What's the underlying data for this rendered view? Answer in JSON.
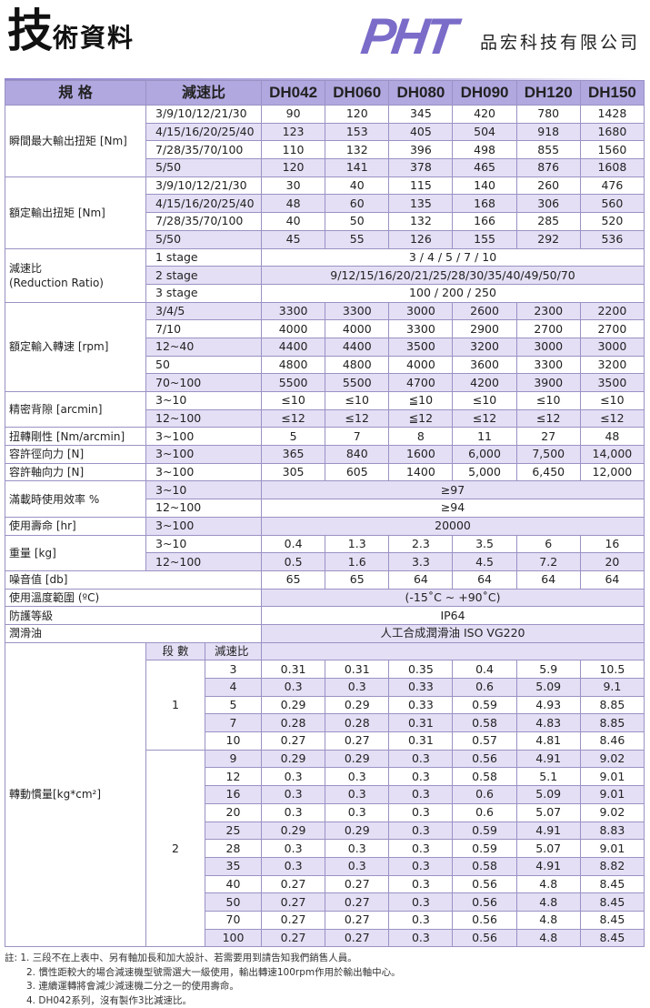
{
  "header": {
    "title_big": "技",
    "title_rest": "術資料",
    "logo": "PHT",
    "company": "品宏科技有限公司"
  },
  "columns": {
    "spec": "規 格",
    "ratio": "減速比",
    "models": [
      "DH042",
      "DH060",
      "DH080",
      "DH090",
      "DH120",
      "DH150"
    ]
  },
  "groups": [
    {
      "label": "瞬間最大輸出扭矩 [Nm]",
      "rows": [
        {
          "ratio": "3/9/10/12/21/30",
          "values": [
            "90",
            "120",
            "345",
            "420",
            "780",
            "1428"
          ]
        },
        {
          "ratio": "4/15/16/20/25/40",
          "values": [
            "123",
            "153",
            "405",
            "504",
            "918",
            "1680"
          ]
        },
        {
          "ratio": "7/28/35/70/100",
          "values": [
            "110",
            "132",
            "396",
            "498",
            "855",
            "1560"
          ]
        },
        {
          "ratio": "5/50",
          "values": [
            "120",
            "141",
            "378",
            "465",
            "876",
            "1608"
          ]
        }
      ]
    },
    {
      "label": "額定輸出扭矩 [Nm]",
      "rows": [
        {
          "ratio": "3/9/10/12/21/30",
          "values": [
            "30",
            "40",
            "115",
            "140",
            "260",
            "476"
          ]
        },
        {
          "ratio": "4/15/16/20/25/40",
          "values": [
            "48",
            "60",
            "135",
            "168",
            "306",
            "560"
          ]
        },
        {
          "ratio": "7/28/35/70/100",
          "values": [
            "40",
            "50",
            "132",
            "166",
            "285",
            "520"
          ]
        },
        {
          "ratio": "5/50",
          "values": [
            "45",
            "55",
            "126",
            "155",
            "292",
            "536"
          ]
        }
      ]
    },
    {
      "label": "減速比\n(Reduction Ratio)",
      "rows": [
        {
          "ratio": "1 stage",
          "span": "3 / 4 / 5 / 7 / 10"
        },
        {
          "ratio": "2 stage",
          "span": "9/12/15/16/20/21/25/28/30/35/40/49/50/70"
        },
        {
          "ratio": "3 stage",
          "span": "100 / 200 / 250"
        }
      ]
    },
    {
      "label": "額定輸入轉速 [rpm]",
      "rows": [
        {
          "ratio": "3/4/5",
          "values": [
            "3300",
            "3300",
            "3000",
            "2600",
            "2300",
            "2200"
          ]
        },
        {
          "ratio": "7/10",
          "values": [
            "4000",
            "4000",
            "3300",
            "2900",
            "2700",
            "2700"
          ]
        },
        {
          "ratio": "12~40",
          "values": [
            "4400",
            "4400",
            "3500",
            "3200",
            "3000",
            "3000"
          ]
        },
        {
          "ratio": "50",
          "values": [
            "4800",
            "4800",
            "4000",
            "3600",
            "3300",
            "3200"
          ]
        },
        {
          "ratio": "70~100",
          "values": [
            "5500",
            "5500",
            "4700",
            "4200",
            "3900",
            "3500"
          ]
        }
      ]
    },
    {
      "label": "精密背隙 [arcmin]",
      "rows": [
        {
          "ratio": "3~10",
          "values": [
            "≤10",
            "≤10",
            "≦10",
            "≤10",
            "≤10",
            "≤10"
          ]
        },
        {
          "ratio": "12~100",
          "values": [
            "≤12",
            "≤12",
            "≦12",
            "≤12",
            "≤12",
            "≤12"
          ]
        }
      ]
    },
    {
      "label": "扭轉剛性 [Nm/arcmin]",
      "rows": [
        {
          "ratio": "3~100",
          "values": [
            "5",
            "7",
            "8",
            "11",
            "27",
            "48"
          ]
        }
      ]
    },
    {
      "label": "容許徑向力 [N]",
      "rows": [
        {
          "ratio": "3~100",
          "values": [
            "365",
            "840",
            "1600",
            "6,000",
            "7,500",
            "14,000"
          ]
        }
      ]
    },
    {
      "label": "容許軸向力 [N]",
      "rows": [
        {
          "ratio": "3~100",
          "values": [
            "305",
            "605",
            "1400",
            "5,000",
            "6,450",
            "12,000"
          ]
        }
      ]
    },
    {
      "label": "滿載時使用效率 %",
      "rows": [
        {
          "ratio": "3~10",
          "span": "≥97"
        },
        {
          "ratio": "12~100",
          "span": "≥94"
        }
      ]
    },
    {
      "label": "使用壽命 [hr]",
      "rows": [
        {
          "ratio": "3~100",
          "span": "20000"
        }
      ]
    },
    {
      "label": "重量 [kg]",
      "rows": [
        {
          "ratio": "3~10",
          "values": [
            "0.4",
            "1.3",
            "2.3",
            "3.5",
            "6",
            "16"
          ]
        },
        {
          "ratio": "12~100",
          "values": [
            "0.5",
            "1.6",
            "3.3",
            "4.5",
            "7.2",
            "20"
          ]
        }
      ]
    },
    {
      "label": "噪音值 [db]",
      "rows": [
        {
          "values": [
            "65",
            "65",
            "64",
            "64",
            "64",
            "64"
          ]
        }
      ]
    },
    {
      "label": "使用溫度範圍 (ºC)",
      "rows": [
        {
          "span": "(-15˚C ~ +90˚C)"
        }
      ]
    },
    {
      "label": "防護等級",
      "rows": [
        {
          "span": "IP64"
        }
      ]
    },
    {
      "label": "潤滑油",
      "rows": [
        {
          "span": "人工合成潤滑油 ISO VG220"
        }
      ]
    }
  ],
  "inertia": {
    "label": "轉動慣量[kg*cm²]",
    "stage_header": "段 數",
    "ratio_header": "減速比",
    "stages": [
      {
        "stage": "1",
        "rows": [
          {
            "ratio": "3",
            "values": [
              "0.31",
              "0.31",
              "0.35",
              "0.4",
              "5.9",
              "10.5"
            ]
          },
          {
            "ratio": "4",
            "values": [
              "0.3",
              "0.3",
              "0.33",
              "0.6",
              "5.09",
              "9.1"
            ]
          },
          {
            "ratio": "5",
            "values": [
              "0.29",
              "0.29",
              "0.33",
              "0.59",
              "4.93",
              "8.85"
            ]
          },
          {
            "ratio": "7",
            "values": [
              "0.28",
              "0.28",
              "0.31",
              "0.58",
              "4.83",
              "8.85"
            ]
          },
          {
            "ratio": "10",
            "values": [
              "0.27",
              "0.27",
              "0.31",
              "0.57",
              "4.81",
              "8.46"
            ]
          }
        ]
      },
      {
        "stage": "2",
        "rows": [
          {
            "ratio": "9",
            "values": [
              "0.29",
              "0.29",
              "0.3",
              "0.56",
              "4.91",
              "9.02"
            ]
          },
          {
            "ratio": "12",
            "values": [
              "0.3",
              "0.3",
              "0.3",
              "0.58",
              "5.1",
              "9.01"
            ]
          },
          {
            "ratio": "16",
            "values": [
              "0.3",
              "0.3",
              "0.3",
              "0.6",
              "5.09",
              "9.01"
            ]
          },
          {
            "ratio": "20",
            "values": [
              "0.3",
              "0.3",
              "0.3",
              "0.6",
              "5.07",
              "9.02"
            ]
          },
          {
            "ratio": "25",
            "values": [
              "0.29",
              "0.29",
              "0.3",
              "0.59",
              "4.91",
              "8.83"
            ]
          },
          {
            "ratio": "28",
            "values": [
              "0.3",
              "0.3",
              "0.3",
              "0.59",
              "5.07",
              "9.01"
            ]
          },
          {
            "ratio": "35",
            "values": [
              "0.3",
              "0.3",
              "0.3",
              "0.58",
              "4.91",
              "8.82"
            ]
          },
          {
            "ratio": "40",
            "values": [
              "0.27",
              "0.27",
              "0.3",
              "0.56",
              "4.8",
              "8.45"
            ]
          },
          {
            "ratio": "50",
            "values": [
              "0.27",
              "0.27",
              "0.3",
              "0.56",
              "4.8",
              "8.45"
            ]
          },
          {
            "ratio": "70",
            "values": [
              "0.27",
              "0.27",
              "0.3",
              "0.56",
              "4.8",
              "8.45"
            ]
          },
          {
            "ratio": "100",
            "values": [
              "0.27",
              "0.27",
              "0.3",
              "0.56",
              "4.8",
              "8.45"
            ]
          }
        ]
      }
    ]
  },
  "notes": [
    "註: 1. 三段不在上表中、另有軸加長和加大設計、若需要用到請告知我們銷售人員。",
    "2. 慣性距較大的場合減速機型號需選大一級使用，輸出轉速100rpm作用於輸出軸中心。",
    "3. 連續運轉將會減少減速機二分之一的使用壽命。",
    "4. DH042系列，沒有製作3比減速比。"
  ],
  "colors": {
    "brand": "#7a6cc8",
    "header": "#b1a8e0",
    "row_alt": "#e4dff5"
  }
}
